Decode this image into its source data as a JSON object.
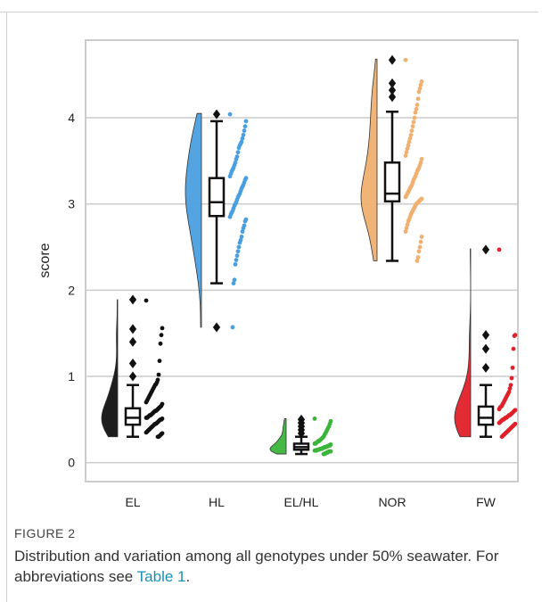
{
  "figure": {
    "label": "FIGURE 2",
    "caption": "Distribution and variation among all genotypes under 50% seawater. For abbreviations see ",
    "caption_link": "Table 1",
    "caption_end": "."
  },
  "colors": {
    "EL": "#111111",
    "HL": "#4a9fde",
    "EL/HL": "#3cb43c",
    "NOR": "#f0b070",
    "FW": "#e0202a",
    "grid": "#cccccc",
    "frame": "#cccccc"
  },
  "chart_data": {
    "type": "raincloud",
    "ylabel": "score",
    "xlabel": "",
    "ylim": [
      -0.22,
      4.9
    ],
    "yticks": [
      0,
      1,
      2,
      3,
      4
    ],
    "grid": true,
    "categories": [
      "EL",
      "HL",
      "EL/HL",
      "NOR",
      "FW"
    ],
    "groups": [
      {
        "name": "EL",
        "box": {
          "q1": 0.44,
          "median": 0.52,
          "q3": 0.63,
          "whisker_low": 0.3,
          "whisker_high": 0.9
        },
        "outliers": [
          1.0,
          1.15,
          1.4,
          1.55,
          1.89
        ],
        "density_max": 1.89,
        "points": [
          1.88,
          1.56,
          1.48,
          1.38,
          1.18,
          1.02,
          0.96,
          0.93,
          0.91,
          0.9,
          0.88,
          0.86,
          0.84,
          0.82,
          0.8,
          0.78,
          0.76,
          0.74,
          0.72,
          0.7,
          0.68,
          0.66,
          0.65,
          0.64,
          0.63,
          0.62,
          0.61,
          0.6,
          0.6,
          0.59,
          0.58,
          0.57,
          0.56,
          0.55,
          0.55,
          0.54,
          0.53,
          0.52,
          0.52,
          0.51,
          0.5,
          0.5,
          0.49,
          0.48,
          0.47,
          0.46,
          0.45,
          0.45,
          0.44,
          0.43,
          0.42,
          0.41,
          0.4,
          0.39,
          0.38,
          0.37,
          0.36,
          0.35,
          0.34,
          0.33,
          0.32,
          0.31,
          0.3,
          0.3
        ]
      },
      {
        "name": "HL",
        "box": {
          "q1": 2.86,
          "median": 3.02,
          "q3": 3.3,
          "whisker_low": 2.08,
          "whisker_high": 3.96
        },
        "outliers": [
          1.57,
          4.04
        ],
        "density_max": 4.05,
        "points": [
          4.04,
          3.96,
          3.9,
          3.85,
          3.8,
          3.76,
          3.72,
          3.7,
          3.68,
          3.65,
          3.6,
          3.55,
          3.52,
          3.48,
          3.45,
          3.42,
          3.4,
          3.38,
          3.35,
          3.32,
          3.3,
          3.28,
          3.25,
          3.22,
          3.2,
          3.18,
          3.15,
          3.12,
          3.1,
          3.08,
          3.05,
          3.02,
          3.0,
          2.98,
          2.95,
          2.92,
          2.9,
          2.88,
          2.85,
          2.82,
          2.8,
          2.75,
          2.72,
          2.68,
          2.62,
          2.58,
          2.55,
          2.5,
          2.45,
          2.4,
          2.35,
          2.3,
          2.12,
          2.08,
          1.57
        ]
      },
      {
        "name": "EL/HL",
        "box": {
          "q1": 0.15,
          "median": 0.18,
          "q3": 0.22,
          "whisker_low": 0.1,
          "whisker_high": 0.3
        },
        "outliers": [
          0.34,
          0.38,
          0.42,
          0.46,
          0.5
        ],
        "density_max": 0.51,
        "points": [
          0.51,
          0.48,
          0.45,
          0.42,
          0.4,
          0.38,
          0.36,
          0.34,
          0.32,
          0.3,
          0.29,
          0.28,
          0.27,
          0.26,
          0.25,
          0.25,
          0.24,
          0.23,
          0.22,
          0.22,
          0.21,
          0.2,
          0.2,
          0.19,
          0.19,
          0.18,
          0.18,
          0.18,
          0.17,
          0.17,
          0.16,
          0.16,
          0.16,
          0.15,
          0.15,
          0.15,
          0.14,
          0.14,
          0.14,
          0.13,
          0.13,
          0.13,
          0.12,
          0.12,
          0.11,
          0.11,
          0.1,
          0.1
        ]
      },
      {
        "name": "NOR",
        "box": {
          "q1": 3.03,
          "median": 3.12,
          "q3": 3.48,
          "whisker_low": 2.34,
          "whisker_high": 4.07
        },
        "outliers": [
          4.24,
          4.32,
          4.4,
          4.67
        ],
        "density_max": 4.68,
        "points": [
          4.67,
          4.42,
          4.38,
          4.34,
          4.3,
          4.22,
          4.15,
          4.1,
          4.06,
          4.0,
          3.95,
          3.9,
          3.85,
          3.8,
          3.76,
          3.72,
          3.68,
          3.64,
          3.6,
          3.56,
          3.52,
          3.48,
          3.45,
          3.42,
          3.4,
          3.38,
          3.35,
          3.32,
          3.3,
          3.28,
          3.25,
          3.22,
          3.2,
          3.18,
          3.16,
          3.14,
          3.12,
          3.1,
          3.08,
          3.06,
          3.05,
          3.04,
          3.03,
          3.02,
          3.01,
          3.0,
          2.98,
          2.96,
          2.94,
          2.92,
          2.9,
          2.88,
          2.85,
          2.82,
          2.8,
          2.76,
          2.72,
          2.68,
          2.62,
          2.56,
          2.5,
          2.45,
          2.38,
          2.34
        ]
      },
      {
        "name": "FW",
        "box": {
          "q1": 0.44,
          "median": 0.52,
          "q3": 0.65,
          "whisker_low": 0.3,
          "whisker_high": 0.9
        },
        "outliers": [
          1.1,
          1.32,
          1.48,
          2.47
        ],
        "density_max": 2.48,
        "points": [
          2.47,
          1.48,
          1.47,
          1.32,
          1.1,
          0.98,
          0.9,
          0.86,
          0.82,
          0.8,
          0.78,
          0.76,
          0.74,
          0.72,
          0.7,
          0.68,
          0.66,
          0.65,
          0.64,
          0.62,
          0.61,
          0.6,
          0.59,
          0.58,
          0.57,
          0.56,
          0.55,
          0.55,
          0.54,
          0.53,
          0.52,
          0.52,
          0.51,
          0.5,
          0.5,
          0.49,
          0.48,
          0.47,
          0.46,
          0.45,
          0.44,
          0.43,
          0.42,
          0.41,
          0.4,
          0.39,
          0.38,
          0.37,
          0.36,
          0.35,
          0.34,
          0.33,
          0.32,
          0.31,
          0.3
        ]
      }
    ]
  }
}
